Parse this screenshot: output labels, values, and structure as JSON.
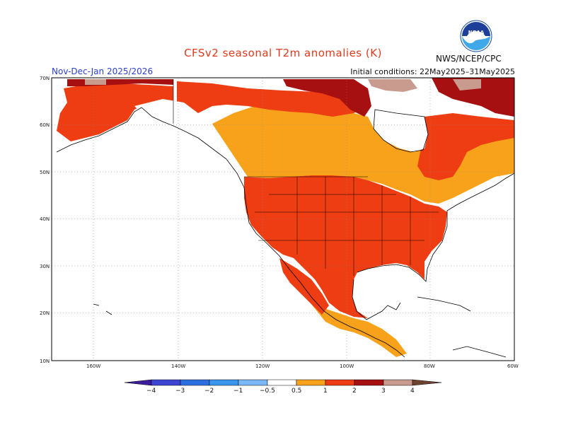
{
  "header": {
    "title": "CFSv2 seasonal T2m anomalies (K)",
    "season": "Nov-Dec-Jan 2025/2026",
    "initial_conditions": "Initial conditions: 22May2025–31May2025",
    "agency": "NWS/NCEP/CPC",
    "logo_text": "NOAA"
  },
  "map": {
    "region": "North America",
    "lat_labels": [
      "70N",
      "60N",
      "50N",
      "40N",
      "30N",
      "20N",
      "10N"
    ],
    "lon_labels": [
      "160W",
      "140W",
      "120W",
      "100W",
      "80W",
      "60W"
    ],
    "grid": true
  },
  "colorbar": {
    "labels": [
      "−4",
      "−3",
      "−2",
      "−1",
      "−0.5",
      "0.5",
      "1",
      "2",
      "3",
      "4"
    ],
    "colors": [
      "#3c1e9c",
      "#3c46d2",
      "#2c6fe0",
      "#3a96ec",
      "#7ab8f5",
      "#ffffff",
      "#f7a21a",
      "#ee3d12",
      "#a61010",
      "#c99a8e",
      "#6e4230"
    ]
  },
  "anomaly_colors": {
    "near_zero": "#ffffff",
    "0.5_to_1": "#f7a21a",
    "1_to_2": "#ee3d12",
    "2_to_3": "#a61010",
    "3_to_4": "#c99a8e"
  }
}
